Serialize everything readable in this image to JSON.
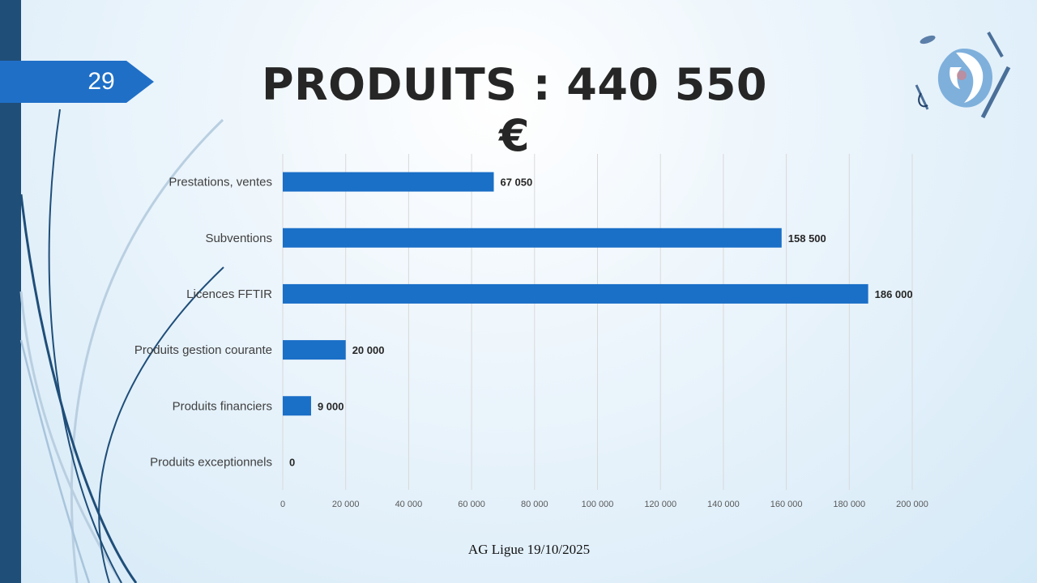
{
  "slide": {
    "number": "29",
    "title": "PRODUITS : 440 550 €",
    "footer": "AG Ligue 19/10/2025"
  },
  "colors": {
    "bar": "#1a6fc7",
    "left_bar": "#1f4e79",
    "badge": "#1f6fc7",
    "grid": "#d9d9d9"
  },
  "chart_data": {
    "type": "bar",
    "orientation": "horizontal",
    "categories": [
      "Prestations, ventes",
      "Subventions",
      "Licences FFTIR",
      "Produits gestion courante",
      "Produits financiers",
      "Produits exceptionnels"
    ],
    "values": [
      67050,
      158500,
      186000,
      20000,
      9000,
      0
    ],
    "data_labels": [
      "67 050",
      "158 500",
      "186 000",
      "20 000",
      "9 000",
      "0"
    ],
    "xlim": [
      0,
      200000
    ],
    "ticks": [
      0,
      20000,
      40000,
      60000,
      80000,
      100000,
      120000,
      140000,
      160000,
      180000,
      200000
    ],
    "tick_labels": [
      "0",
      "20 000",
      "40 000",
      "60 000",
      "80 000",
      "100 000",
      "120 000",
      "140 000",
      "160 000",
      "180 000",
      "200 000"
    ],
    "grid": true,
    "legend": "none"
  }
}
